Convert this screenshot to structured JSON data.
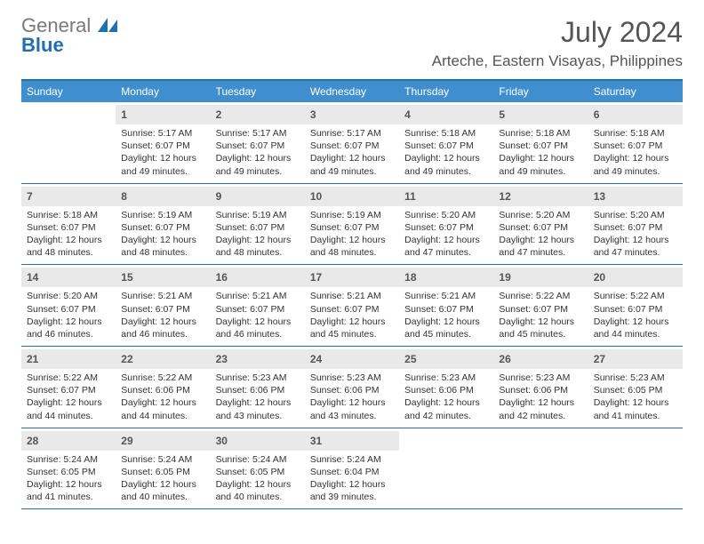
{
  "logo": {
    "word1": "General",
    "word2": "Blue"
  },
  "header": {
    "title": "July 2024",
    "location": "Arteche, Eastern Visayas, Philippines"
  },
  "colors": {
    "accent": "#1f6fb2",
    "header_bg": "#3f8fd0",
    "daynum_bg": "#e9e9e9",
    "text": "#555555"
  },
  "dow": [
    "Sunday",
    "Monday",
    "Tuesday",
    "Wednesday",
    "Thursday",
    "Friday",
    "Saturday"
  ],
  "weeks": [
    [
      {
        "n": "",
        "sr": "",
        "ss": "",
        "dl": ""
      },
      {
        "n": "1",
        "sr": "Sunrise: 5:17 AM",
        "ss": "Sunset: 6:07 PM",
        "dl": "Daylight: 12 hours and 49 minutes."
      },
      {
        "n": "2",
        "sr": "Sunrise: 5:17 AM",
        "ss": "Sunset: 6:07 PM",
        "dl": "Daylight: 12 hours and 49 minutes."
      },
      {
        "n": "3",
        "sr": "Sunrise: 5:17 AM",
        "ss": "Sunset: 6:07 PM",
        "dl": "Daylight: 12 hours and 49 minutes."
      },
      {
        "n": "4",
        "sr": "Sunrise: 5:18 AM",
        "ss": "Sunset: 6:07 PM",
        "dl": "Daylight: 12 hours and 49 minutes."
      },
      {
        "n": "5",
        "sr": "Sunrise: 5:18 AM",
        "ss": "Sunset: 6:07 PM",
        "dl": "Daylight: 12 hours and 49 minutes."
      },
      {
        "n": "6",
        "sr": "Sunrise: 5:18 AM",
        "ss": "Sunset: 6:07 PM",
        "dl": "Daylight: 12 hours and 49 minutes."
      }
    ],
    [
      {
        "n": "7",
        "sr": "Sunrise: 5:18 AM",
        "ss": "Sunset: 6:07 PM",
        "dl": "Daylight: 12 hours and 48 minutes."
      },
      {
        "n": "8",
        "sr": "Sunrise: 5:19 AM",
        "ss": "Sunset: 6:07 PM",
        "dl": "Daylight: 12 hours and 48 minutes."
      },
      {
        "n": "9",
        "sr": "Sunrise: 5:19 AM",
        "ss": "Sunset: 6:07 PM",
        "dl": "Daylight: 12 hours and 48 minutes."
      },
      {
        "n": "10",
        "sr": "Sunrise: 5:19 AM",
        "ss": "Sunset: 6:07 PM",
        "dl": "Daylight: 12 hours and 48 minutes."
      },
      {
        "n": "11",
        "sr": "Sunrise: 5:20 AM",
        "ss": "Sunset: 6:07 PM",
        "dl": "Daylight: 12 hours and 47 minutes."
      },
      {
        "n": "12",
        "sr": "Sunrise: 5:20 AM",
        "ss": "Sunset: 6:07 PM",
        "dl": "Daylight: 12 hours and 47 minutes."
      },
      {
        "n": "13",
        "sr": "Sunrise: 5:20 AM",
        "ss": "Sunset: 6:07 PM",
        "dl": "Daylight: 12 hours and 47 minutes."
      }
    ],
    [
      {
        "n": "14",
        "sr": "Sunrise: 5:20 AM",
        "ss": "Sunset: 6:07 PM",
        "dl": "Daylight: 12 hours and 46 minutes."
      },
      {
        "n": "15",
        "sr": "Sunrise: 5:21 AM",
        "ss": "Sunset: 6:07 PM",
        "dl": "Daylight: 12 hours and 46 minutes."
      },
      {
        "n": "16",
        "sr": "Sunrise: 5:21 AM",
        "ss": "Sunset: 6:07 PM",
        "dl": "Daylight: 12 hours and 46 minutes."
      },
      {
        "n": "17",
        "sr": "Sunrise: 5:21 AM",
        "ss": "Sunset: 6:07 PM",
        "dl": "Daylight: 12 hours and 45 minutes."
      },
      {
        "n": "18",
        "sr": "Sunrise: 5:21 AM",
        "ss": "Sunset: 6:07 PM",
        "dl": "Daylight: 12 hours and 45 minutes."
      },
      {
        "n": "19",
        "sr": "Sunrise: 5:22 AM",
        "ss": "Sunset: 6:07 PM",
        "dl": "Daylight: 12 hours and 45 minutes."
      },
      {
        "n": "20",
        "sr": "Sunrise: 5:22 AM",
        "ss": "Sunset: 6:07 PM",
        "dl": "Daylight: 12 hours and 44 minutes."
      }
    ],
    [
      {
        "n": "21",
        "sr": "Sunrise: 5:22 AM",
        "ss": "Sunset: 6:07 PM",
        "dl": "Daylight: 12 hours and 44 minutes."
      },
      {
        "n": "22",
        "sr": "Sunrise: 5:22 AM",
        "ss": "Sunset: 6:06 PM",
        "dl": "Daylight: 12 hours and 44 minutes."
      },
      {
        "n": "23",
        "sr": "Sunrise: 5:23 AM",
        "ss": "Sunset: 6:06 PM",
        "dl": "Daylight: 12 hours and 43 minutes."
      },
      {
        "n": "24",
        "sr": "Sunrise: 5:23 AM",
        "ss": "Sunset: 6:06 PM",
        "dl": "Daylight: 12 hours and 43 minutes."
      },
      {
        "n": "25",
        "sr": "Sunrise: 5:23 AM",
        "ss": "Sunset: 6:06 PM",
        "dl": "Daylight: 12 hours and 42 minutes."
      },
      {
        "n": "26",
        "sr": "Sunrise: 5:23 AM",
        "ss": "Sunset: 6:06 PM",
        "dl": "Daylight: 12 hours and 42 minutes."
      },
      {
        "n": "27",
        "sr": "Sunrise: 5:23 AM",
        "ss": "Sunset: 6:05 PM",
        "dl": "Daylight: 12 hours and 41 minutes."
      }
    ],
    [
      {
        "n": "28",
        "sr": "Sunrise: 5:24 AM",
        "ss": "Sunset: 6:05 PM",
        "dl": "Daylight: 12 hours and 41 minutes."
      },
      {
        "n": "29",
        "sr": "Sunrise: 5:24 AM",
        "ss": "Sunset: 6:05 PM",
        "dl": "Daylight: 12 hours and 40 minutes."
      },
      {
        "n": "30",
        "sr": "Sunrise: 5:24 AM",
        "ss": "Sunset: 6:05 PM",
        "dl": "Daylight: 12 hours and 40 minutes."
      },
      {
        "n": "31",
        "sr": "Sunrise: 5:24 AM",
        "ss": "Sunset: 6:04 PM",
        "dl": "Daylight: 12 hours and 39 minutes."
      },
      {
        "n": "",
        "sr": "",
        "ss": "",
        "dl": ""
      },
      {
        "n": "",
        "sr": "",
        "ss": "",
        "dl": ""
      },
      {
        "n": "",
        "sr": "",
        "ss": "",
        "dl": ""
      }
    ]
  ]
}
